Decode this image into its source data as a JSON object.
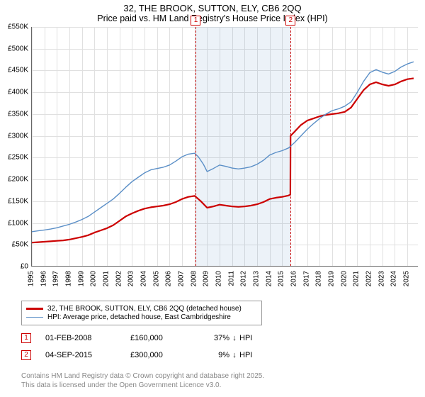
{
  "title_line1": "32, THE BROOK, SUTTON, ELY, CB6 2QQ",
  "title_line2": "Price paid vs. HM Land Registry's House Price Index (HPI)",
  "chart": {
    "type": "line",
    "background_color": "#ffffff",
    "grid_color": "#e0e0e0",
    "axis_color": "#666666",
    "xlim": [
      1995,
      2025.9
    ],
    "ylim": [
      0,
      550000
    ],
    "y_ticks": [
      0,
      50000,
      100000,
      150000,
      200000,
      250000,
      300000,
      350000,
      400000,
      450000,
      500000,
      550000
    ],
    "y_tick_labels": [
      "£0",
      "£50K",
      "£100K",
      "£150K",
      "£200K",
      "£250K",
      "£300K",
      "£350K",
      "£400K",
      "£450K",
      "£500K",
      "£550K"
    ],
    "x_ticks": [
      1995,
      1996,
      1997,
      1998,
      1999,
      2000,
      2001,
      2002,
      2003,
      2004,
      2005,
      2006,
      2007,
      2008,
      2009,
      2010,
      2011,
      2012,
      2013,
      2014,
      2015,
      2016,
      2017,
      2018,
      2019,
      2020,
      2021,
      2022,
      2023,
      2024,
      2025
    ],
    "x_tick_labels": [
      "1995",
      "1996",
      "1997",
      "1998",
      "1999",
      "2000",
      "2001",
      "2002",
      "2003",
      "2004",
      "2005",
      "2006",
      "2007",
      "2008",
      "2009",
      "2010",
      "2011",
      "2012",
      "2013",
      "2014",
      "2015",
      "2016",
      "2017",
      "2018",
      "2019",
      "2020",
      "2021",
      "2022",
      "2023",
      "2024",
      "2025"
    ],
    "shade_start_x": 2008.1,
    "shade_end_x": 2015.67,
    "markers": [
      {
        "label": "1",
        "x": 2008.1
      },
      {
        "label": "2",
        "x": 2015.67
      }
    ],
    "series": [
      {
        "name": "price_paid",
        "color": "#cc0000",
        "width": 2.2,
        "points": [
          [
            1995,
            55000
          ],
          [
            1995.5,
            56000
          ],
          [
            1996,
            57000
          ],
          [
            1996.5,
            58000
          ],
          [
            1997,
            59000
          ],
          [
            1997.5,
            60000
          ],
          [
            1998,
            62000
          ],
          [
            1998.5,
            65000
          ],
          [
            1999,
            68000
          ],
          [
            1999.5,
            72000
          ],
          [
            2000,
            78000
          ],
          [
            2000.5,
            83000
          ],
          [
            2001,
            88000
          ],
          [
            2001.5,
            95000
          ],
          [
            2002,
            105000
          ],
          [
            2002.5,
            115000
          ],
          [
            2003,
            122000
          ],
          [
            2003.5,
            128000
          ],
          [
            2004,
            133000
          ],
          [
            2004.5,
            136000
          ],
          [
            2005,
            138000
          ],
          [
            2005.5,
            140000
          ],
          [
            2006,
            143000
          ],
          [
            2006.5,
            148000
          ],
          [
            2007,
            155000
          ],
          [
            2007.5,
            160000
          ],
          [
            2008,
            162000
          ],
          [
            2008.1,
            160000
          ],
          [
            2008.5,
            150000
          ],
          [
            2009,
            135000
          ],
          [
            2009.5,
            138000
          ],
          [
            2010,
            142000
          ],
          [
            2010.5,
            140000
          ],
          [
            2011,
            138000
          ],
          [
            2011.5,
            137000
          ],
          [
            2012,
            138000
          ],
          [
            2012.5,
            140000
          ],
          [
            2013,
            143000
          ],
          [
            2013.5,
            148000
          ],
          [
            2014,
            155000
          ],
          [
            2014.5,
            158000
          ],
          [
            2015,
            160000
          ],
          [
            2015.5,
            163000
          ],
          [
            2015.65,
            165000
          ],
          [
            2015.67,
            300000
          ],
          [
            2016,
            310000
          ],
          [
            2016.5,
            325000
          ],
          [
            2017,
            335000
          ],
          [
            2017.5,
            340000
          ],
          [
            2018,
            345000
          ],
          [
            2018.5,
            348000
          ],
          [
            2019,
            350000
          ],
          [
            2019.5,
            352000
          ],
          [
            2020,
            355000
          ],
          [
            2020.5,
            365000
          ],
          [
            2021,
            385000
          ],
          [
            2021.5,
            405000
          ],
          [
            2022,
            418000
          ],
          [
            2022.5,
            423000
          ],
          [
            2023,
            418000
          ],
          [
            2023.5,
            415000
          ],
          [
            2024,
            418000
          ],
          [
            2024.5,
            425000
          ],
          [
            2025,
            430000
          ],
          [
            2025.5,
            432000
          ]
        ]
      },
      {
        "name": "hpi",
        "color": "#5b8fc7",
        "width": 1.4,
        "points": [
          [
            1995,
            80000
          ],
          [
            1995.5,
            82000
          ],
          [
            1996,
            84000
          ],
          [
            1996.5,
            86000
          ],
          [
            1997,
            89000
          ],
          [
            1997.5,
            93000
          ],
          [
            1998,
            97000
          ],
          [
            1998.5,
            102000
          ],
          [
            1999,
            108000
          ],
          [
            1999.5,
            115000
          ],
          [
            2000,
            125000
          ],
          [
            2000.5,
            135000
          ],
          [
            2001,
            145000
          ],
          [
            2001.5,
            155000
          ],
          [
            2002,
            168000
          ],
          [
            2002.5,
            182000
          ],
          [
            2003,
            195000
          ],
          [
            2003.5,
            205000
          ],
          [
            2004,
            215000
          ],
          [
            2004.5,
            222000
          ],
          [
            2005,
            225000
          ],
          [
            2005.5,
            228000
          ],
          [
            2006,
            233000
          ],
          [
            2006.5,
            242000
          ],
          [
            2007,
            252000
          ],
          [
            2007.5,
            258000
          ],
          [
            2008,
            260000
          ],
          [
            2008.3,
            252000
          ],
          [
            2008.7,
            235000
          ],
          [
            2009,
            218000
          ],
          [
            2009.5,
            225000
          ],
          [
            2010,
            233000
          ],
          [
            2010.5,
            230000
          ],
          [
            2011,
            226000
          ],
          [
            2011.5,
            224000
          ],
          [
            2012,
            226000
          ],
          [
            2012.5,
            229000
          ],
          [
            2013,
            235000
          ],
          [
            2013.5,
            244000
          ],
          [
            2014,
            256000
          ],
          [
            2014.5,
            262000
          ],
          [
            2015,
            266000
          ],
          [
            2015.5,
            272000
          ],
          [
            2016,
            285000
          ],
          [
            2016.5,
            300000
          ],
          [
            2017,
            315000
          ],
          [
            2017.5,
            328000
          ],
          [
            2018,
            340000
          ],
          [
            2018.5,
            350000
          ],
          [
            2019,
            358000
          ],
          [
            2019.5,
            362000
          ],
          [
            2020,
            368000
          ],
          [
            2020.5,
            378000
          ],
          [
            2021,
            400000
          ],
          [
            2021.5,
            425000
          ],
          [
            2022,
            445000
          ],
          [
            2022.5,
            452000
          ],
          [
            2023,
            446000
          ],
          [
            2023.5,
            442000
          ],
          [
            2024,
            448000
          ],
          [
            2024.5,
            458000
          ],
          [
            2025,
            465000
          ],
          [
            2025.5,
            470000
          ]
        ]
      }
    ]
  },
  "legend": {
    "items": [
      {
        "color": "#cc0000",
        "width": 2.2,
        "label": "32, THE BROOK, SUTTON, ELY, CB6 2QQ (detached house)"
      },
      {
        "color": "#5b8fc7",
        "width": 1.4,
        "label": "HPI: Average price, detached house, East Cambridgeshire"
      }
    ]
  },
  "sales": [
    {
      "marker": "1",
      "date": "01-FEB-2008",
      "price": "£160,000",
      "pct": "37%",
      "dir": "↓",
      "vs": "HPI"
    },
    {
      "marker": "2",
      "date": "04-SEP-2015",
      "price": "£300,000",
      "pct": "9%",
      "dir": "↓",
      "vs": "HPI"
    }
  ],
  "footer_line1": "Contains HM Land Registry data © Crown copyright and database right 2025.",
  "footer_line2": "This data is licensed under the Open Government Licence v3.0."
}
